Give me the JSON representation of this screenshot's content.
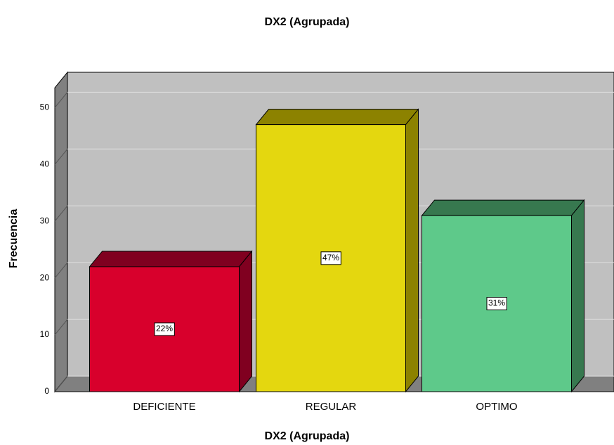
{
  "chart_data": {
    "type": "bar3d",
    "title": "DX2 (Agrupada)",
    "x_label": "DX2 (Agrupada)",
    "y_label": "Frecuencia",
    "categories": [
      "DEFICIENTE",
      "REGULAR",
      "OPTIMO"
    ],
    "values": [
      22,
      47,
      31
    ],
    "value_labels": [
      "22%",
      "47%",
      "31%"
    ],
    "colors": [
      "#d8002c",
      "#e4d70f",
      "#5ec98a"
    ],
    "side_colors": [
      "#800020",
      "#8c8200",
      "#37784f"
    ],
    "ylim": [
      0,
      53.5
    ],
    "yticks": [
      0,
      10,
      20,
      30,
      40,
      50
    ],
    "grid": true
  }
}
